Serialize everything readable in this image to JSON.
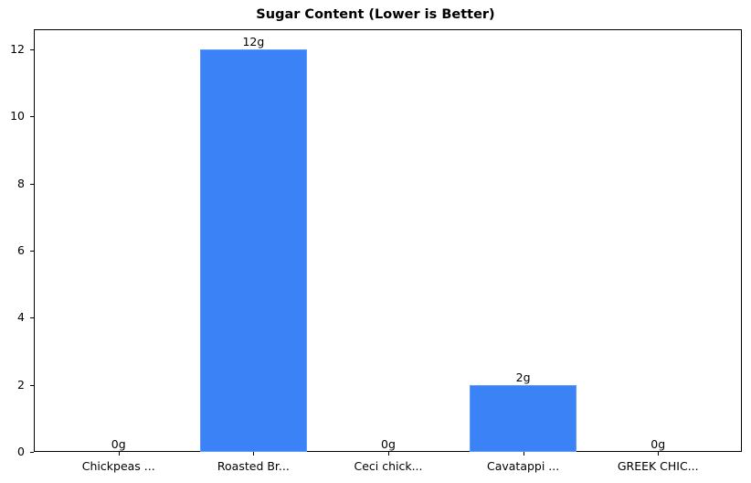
{
  "chart_data": {
    "type": "bar",
    "title": "Sugar Content (Lower is Better)",
    "xlabel": "",
    "ylabel": "",
    "categories": [
      "Chickpeas ...",
      "Roasted Br...",
      "Ceci chick...",
      "Cavatappi ...",
      "GREEK CHIC..."
    ],
    "values": [
      0,
      12,
      0,
      2,
      0
    ],
    "value_labels": [
      "0g",
      "12g",
      "0g",
      "2g",
      "0g"
    ],
    "yticks": [
      "0",
      "2",
      "4",
      "6",
      "8",
      "10",
      "12"
    ],
    "ylim": [
      0,
      12.6
    ],
    "grid": false,
    "legend": null,
    "bar_color": "#3b82f6"
  }
}
